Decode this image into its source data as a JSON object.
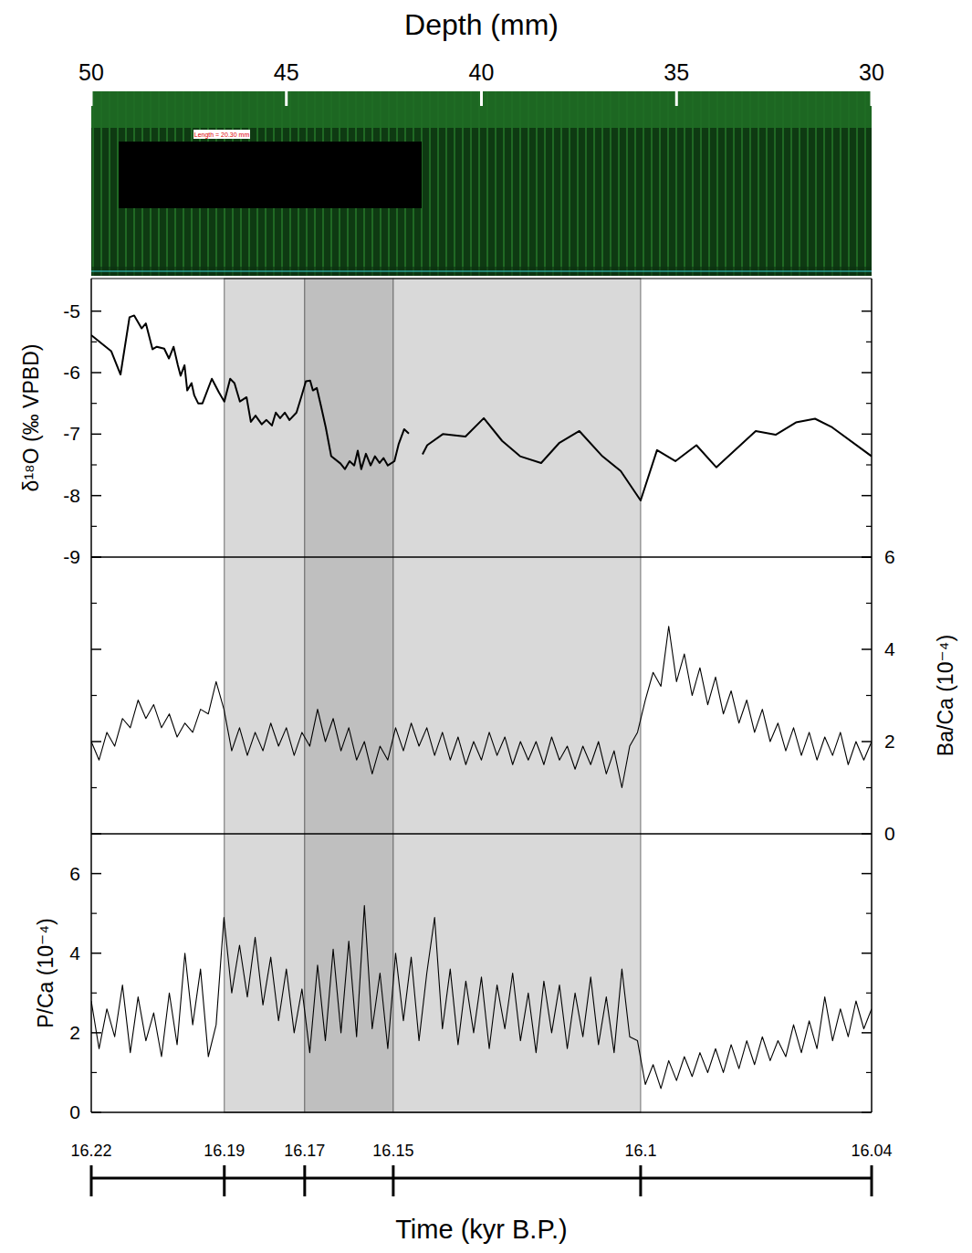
{
  "chart_data": {
    "type": "line",
    "xlabel": "Depth (mm)",
    "xlim": [
      50,
      30
    ],
    "xticks": [
      50,
      45,
      40,
      35,
      30
    ],
    "image_label": "Length = 20.30 mm",
    "time_axis": {
      "label": "Time (kyr B.P.)",
      "ticks": [
        {
          "value": 16.22,
          "depth": 50
        },
        {
          "value": 16.19,
          "depth": 46.59
        },
        {
          "value": 16.17,
          "depth": 44.53
        },
        {
          "value": 16.15,
          "depth": 42.26
        },
        {
          "value": 16.1,
          "depth": 35.92
        },
        {
          "value": 16.04,
          "depth": 30
        }
      ]
    },
    "bands": [
      {
        "from": 46.59,
        "to": 44.53,
        "color": "#d9d9d9"
      },
      {
        "from": 44.53,
        "to": 42.26,
        "color": "#bfbfbf"
      },
      {
        "from": 42.26,
        "to": 35.92,
        "color": "#d9d9d9"
      }
    ],
    "panels": [
      {
        "ylabel": "δ¹⁸O (‰ VPBD)",
        "ylim": [
          -9,
          -4.47
        ],
        "yticks": [
          -9,
          -8,
          -7,
          -6,
          -5
        ],
        "series": [
          {
            "color": "#000000",
            "x": [
              50,
              49.49,
              49.25,
              49.02,
              48.9,
              48.71,
              48.6,
              48.43,
              48.32,
              48.13,
              48.01,
              47.89,
              47.78,
              47.71,
              47.61,
              47.54,
              47.43,
              47.36,
              47.26,
              47.15,
              46.91,
              46.73,
              46.59,
              46.44,
              46.33,
              46.19,
              46.02,
              45.91,
              45.79,
              45.63,
              45.51,
              45.37,
              45.27,
              45.16,
              45.04,
              44.92,
              44.74,
              44.62,
              44.5,
              44.39,
              44.32,
              44.22,
              44.11,
              43.99,
              43.85,
              43.61,
              43.5,
              43.38,
              43.26,
              43.17,
              43.08,
              42.96,
              42.84,
              42.73,
              42.61,
              42.51,
              42.4,
              42.23,
              42.12,
              41.98,
              41.86,
              41.7,
              41.51,
              41.39,
              40.99,
              40.41,
              39.94,
              39.47,
              39.01,
              38.47,
              38.0,
              37.49,
              36.9,
              36.43,
              35.92,
              35.5,
              35.03,
              34.49,
              33.98,
              32.97,
              32.46,
              31.94,
              31.45,
              31.01,
              30
            ],
            "values": [
              -5.39,
              -5.65,
              -6.03,
              -5.1,
              -5.07,
              -5.28,
              -5.2,
              -5.62,
              -5.58,
              -5.61,
              -5.77,
              -5.58,
              -5.88,
              -6.05,
              -5.88,
              -6.29,
              -6.17,
              -6.37,
              -6.5,
              -6.5,
              -6.1,
              -6.32,
              -6.47,
              -6.1,
              -6.17,
              -6.47,
              -6.4,
              -6.8,
              -6.7,
              -6.84,
              -6.77,
              -6.86,
              -6.65,
              -6.74,
              -6.65,
              -6.77,
              -6.65,
              -6.4,
              -6.14,
              -6.13,
              -6.29,
              -6.25,
              -6.55,
              -6.89,
              -7.36,
              -7.48,
              -7.57,
              -7.44,
              -7.51,
              -7.27,
              -7.57,
              -7.32,
              -7.51,
              -7.36,
              -7.47,
              -7.39,
              -7.51,
              -7.44,
              -7.16,
              -6.92,
              -6.99,
              null,
              -7.33,
              -7.18,
              -7.0,
              -7.04,
              -6.74,
              -7.11,
              -7.36,
              -7.47,
              -7.14,
              -6.95,
              -7.36,
              -7.6,
              -8.08,
              -7.26,
              -7.44,
              -7.18,
              -7.54,
              -6.95,
              -7.01,
              -6.81,
              -6.75,
              -6.89,
              -7.36
            ]
          }
        ]
      },
      {
        "y2label": "Ba/Ca (10⁻⁴)",
        "y2lim": [
          0,
          6
        ],
        "y2ticks": [
          0,
          2,
          4,
          6
        ],
        "series": [
          {
            "axis": "y2",
            "color": "#000000",
            "x": [
              50,
              49.8,
              49.6,
              49.4,
              49.2,
              49,
              48.8,
              48.6,
              48.4,
              48.2,
              48,
              47.8,
              47.6,
              47.4,
              47.2,
              47,
              46.8,
              46.6,
              46.4,
              46.2,
              46,
              45.8,
              45.6,
              45.4,
              45.2,
              45,
              44.8,
              44.6,
              44.4,
              44.2,
              44,
              43.8,
              43.6,
              43.4,
              43.2,
              43,
              42.8,
              42.6,
              42.4,
              42.2,
              42,
              41.8,
              41.6,
              41.4,
              41.2,
              41,
              40.8,
              40.6,
              40.4,
              40.2,
              40,
              39.8,
              39.6,
              39.4,
              39.2,
              39,
              38.8,
              38.6,
              38.4,
              38.2,
              38,
              37.8,
              37.6,
              37.4,
              37.2,
              37,
              36.8,
              36.6,
              36.4,
              36.2,
              36,
              35.8,
              35.6,
              35.4,
              35.2,
              35,
              34.8,
              34.6,
              34.4,
              34.2,
              34,
              33.8,
              33.6,
              33.4,
              33.2,
              33,
              32.8,
              32.6,
              32.4,
              32.2,
              32,
              31.8,
              31.6,
              31.4,
              31.2,
              31,
              30.8,
              30.6,
              30.4,
              30.2,
              30
            ],
            "values": [
              2.0,
              1.6,
              2.2,
              1.9,
              2.5,
              2.3,
              2.9,
              2.5,
              2.8,
              2.3,
              2.6,
              2.1,
              2.4,
              2.2,
              2.7,
              2.6,
              3.3,
              2.7,
              1.8,
              2.3,
              1.7,
              2.2,
              1.8,
              2.4,
              1.9,
              2.3,
              1.7,
              2.2,
              1.9,
              2.7,
              2.0,
              2.5,
              1.8,
              2.3,
              1.6,
              2.0,
              1.3,
              1.9,
              1.6,
              2.3,
              1.8,
              2.4,
              1.9,
              2.3,
              1.7,
              2.2,
              1.6,
              2.1,
              1.5,
              2.0,
              1.6,
              2.2,
              1.7,
              2.1,
              1.5,
              2.0,
              1.6,
              2.0,
              1.5,
              2.1,
              1.6,
              1.9,
              1.4,
              1.9,
              1.5,
              2.0,
              1.3,
              1.8,
              1.0,
              1.9,
              2.2,
              2.9,
              3.5,
              3.2,
              4.5,
              3.3,
              3.9,
              3.0,
              3.6,
              2.8,
              3.4,
              2.6,
              3.1,
              2.4,
              2.9,
              2.2,
              2.7,
              2.0,
              2.4,
              1.8,
              2.3,
              1.7,
              2.2,
              1.6,
              2.1,
              1.7,
              2.2,
              1.5,
              2.0,
              1.6,
              2.0
            ]
          }
        ]
      },
      {
        "ylabel": "P/Ca (10⁻⁴)",
        "ylim": [
          0,
          7
        ],
        "yticks": [
          0,
          2,
          4,
          6
        ],
        "series": [
          {
            "color": "#000000",
            "x": [
              50,
              49.8,
              49.6,
              49.4,
              49.2,
              49,
              48.8,
              48.6,
              48.4,
              48.2,
              48,
              47.8,
              47.6,
              47.4,
              47.2,
              47,
              46.8,
              46.6,
              46.4,
              46.2,
              46,
              45.8,
              45.6,
              45.4,
              45.2,
              45,
              44.8,
              44.6,
              44.4,
              44.2,
              44,
              43.8,
              43.6,
              43.4,
              43.2,
              43,
              42.8,
              42.6,
              42.4,
              42.2,
              42,
              41.8,
              41.6,
              41.4,
              41.2,
              41,
              40.8,
              40.6,
              40.4,
              40.2,
              40,
              39.8,
              39.6,
              39.4,
              39.2,
              39,
              38.8,
              38.6,
              38.4,
              38.2,
              38,
              37.8,
              37.6,
              37.4,
              37.2,
              37,
              36.8,
              36.6,
              36.4,
              36.2,
              36,
              35.8,
              35.6,
              35.4,
              35.2,
              35,
              34.8,
              34.6,
              34.4,
              34.2,
              34,
              33.8,
              33.6,
              33.4,
              33.2,
              33,
              32.8,
              32.6,
              32.4,
              32.2,
              32,
              31.8,
              31.6,
              31.4,
              31.2,
              31,
              30.8,
              30.6,
              30.4,
              30.2,
              30
            ],
            "values": [
              2.8,
              1.6,
              2.6,
              1.9,
              3.2,
              1.5,
              2.9,
              1.8,
              2.5,
              1.4,
              3.0,
              1.7,
              4.0,
              2.2,
              3.6,
              1.4,
              2.2,
              4.9,
              3.0,
              4.2,
              2.9,
              4.4,
              2.7,
              3.9,
              2.3,
              3.6,
              2.0,
              3.1,
              1.5,
              3.7,
              1.8,
              4.1,
              2.0,
              4.3,
              1.9,
              5.2,
              2.1,
              3.5,
              1.6,
              4.0,
              2.3,
              3.9,
              1.8,
              3.5,
              4.9,
              2.1,
              3.6,
              1.7,
              3.3,
              2.0,
              3.4,
              1.6,
              3.2,
              2.1,
              3.5,
              1.8,
              3.0,
              1.5,
              3.3,
              2.0,
              3.2,
              1.6,
              3.0,
              1.9,
              3.4,
              1.7,
              2.9,
              1.5,
              3.6,
              1.9,
              1.8,
              0.7,
              1.2,
              0.6,
              1.3,
              0.8,
              1.4,
              0.9,
              1.5,
              1.0,
              1.6,
              1.0,
              1.7,
              1.1,
              1.8,
              1.2,
              1.9,
              1.3,
              1.8,
              1.4,
              2.2,
              1.5,
              2.3,
              1.6,
              2.9,
              1.8,
              2.6,
              1.9,
              2.8,
              2.1,
              2.6
            ]
          }
        ]
      }
    ]
  }
}
